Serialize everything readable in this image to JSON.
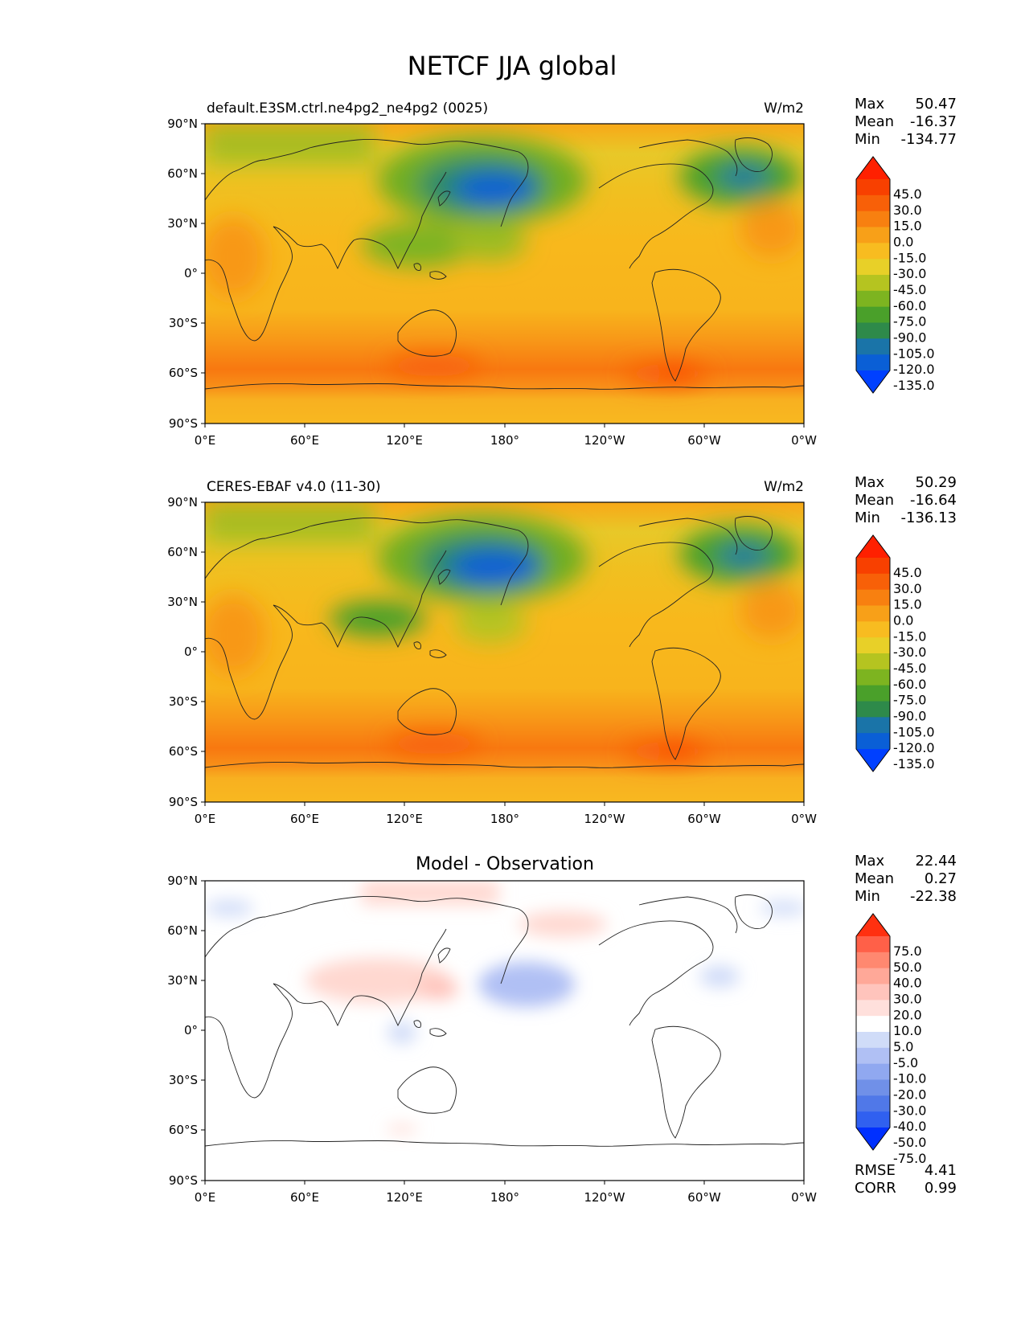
{
  "figure_title": "NETCF JJA global",
  "panels": [
    {
      "id": "model",
      "left_title": "default.E3SM.ctrl.ne4pg2_ne4pg2 (0025)",
      "center_title": "",
      "units": "W/m2",
      "stats": [
        {
          "label": "Max",
          "value": "50.47"
        },
        {
          "label": "Mean",
          "value": "-16.37"
        },
        {
          "label": "Min",
          "value": "-134.77"
        }
      ],
      "colorbar_labels": [
        "45.0",
        "30.0",
        "15.0",
        "0.0",
        "-15.0",
        "-30.0",
        "-45.0",
        "-60.0",
        "-75.0",
        "-90.0",
        "-105.0",
        "-120.0",
        "-135.0"
      ]
    },
    {
      "id": "obs",
      "left_title": "CERES-EBAF v4.0 (11-30)",
      "center_title": "",
      "units": "W/m2",
      "stats": [
        {
          "label": "Max",
          "value": "50.29"
        },
        {
          "label": "Mean",
          "value": "-16.64"
        },
        {
          "label": "Min",
          "value": "-136.13"
        }
      ],
      "colorbar_labels": [
        "45.0",
        "30.0",
        "15.0",
        "0.0",
        "-15.0",
        "-30.0",
        "-45.0",
        "-60.0",
        "-75.0",
        "-90.0",
        "-105.0",
        "-120.0",
        "-135.0"
      ]
    },
    {
      "id": "diff",
      "left_title": "",
      "center_title": "Model - Observation",
      "units": "",
      "stats": [
        {
          "label": "Max",
          "value": "22.44"
        },
        {
          "label": "Mean",
          "value": "0.27"
        },
        {
          "label": "Min",
          "value": "-22.38"
        }
      ],
      "colorbar_labels": [
        "75.0",
        "50.0",
        "40.0",
        "30.0",
        "20.0",
        "10.0",
        "5.0",
        "-5.0",
        "-10.0",
        "-20.0",
        "-30.0",
        "-40.0",
        "-50.0",
        "-75.0"
      ],
      "extra_stats": [
        {
          "label": "RMSE",
          "value": "4.41"
        },
        {
          "label": "CORR",
          "value": "0.99"
        }
      ]
    }
  ],
  "lat_ticks": [
    "90°N",
    "60°N",
    "30°N",
    "0°",
    "30°S",
    "60°S",
    "90°S"
  ],
  "lon_ticks": [
    "0°E",
    "60°E",
    "120°E",
    "180°",
    "120°W",
    "60°W",
    "0°W"
  ],
  "colors": {
    "field_scale": [
      "#0040ff",
      "#0a5fd6",
      "#1a74a8",
      "#2e8a4a",
      "#4aa02a",
      "#7db420",
      "#b5c420",
      "#e8d028",
      "#f8bc20",
      "#f8a018",
      "#f88010",
      "#f86008",
      "#f84000",
      "#ff2000"
    ],
    "diff_scale": [
      "#0030ff",
      "#3060f0",
      "#5078e8",
      "#7090e8",
      "#90a8f0",
      "#b0c0f4",
      "#d0dcf8",
      "#ffffff",
      "#ffe0dc",
      "#ffc4bc",
      "#ffa898",
      "#ff8870",
      "#ff6048",
      "#ff3010"
    ]
  }
}
